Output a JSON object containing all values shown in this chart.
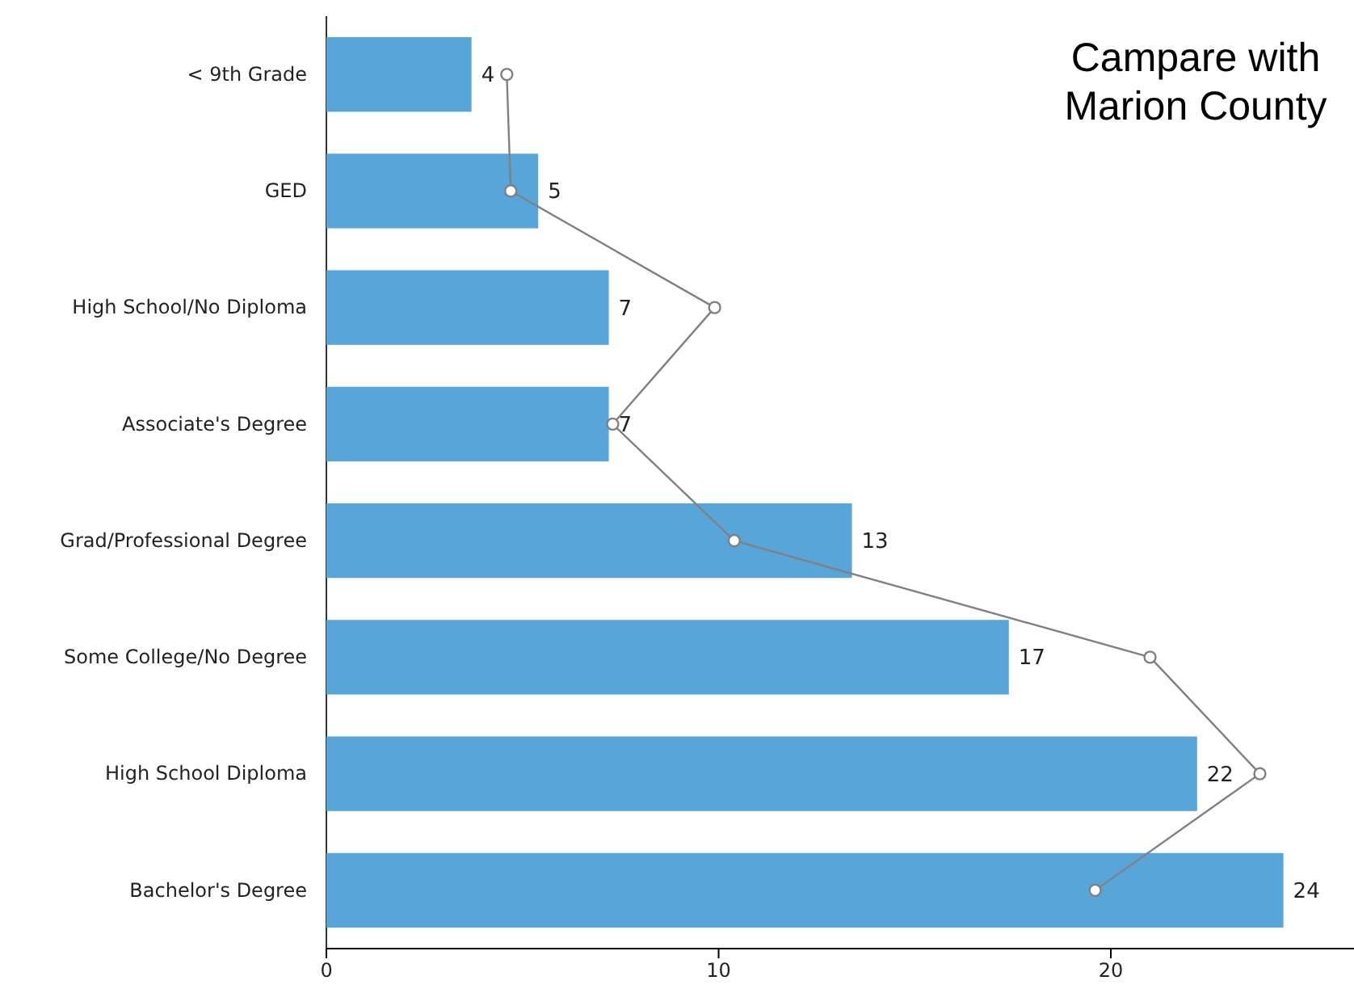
{
  "chart_data": {
    "type": "bar",
    "orientation": "horizontal",
    "title": "Campare with Marion County",
    "categories": [
      "< 9th Grade",
      "GED",
      "High School/No Diploma",
      "Associate's Degree",
      "Grad/Professional Degree",
      "Some College/No Degree",
      "High School Diploma",
      "Bachelor's Degree"
    ],
    "series": [
      {
        "color": "#58a5d9",
        "values": [
          3.7,
          5.4,
          7.2,
          7.2,
          13.4,
          17.4,
          22.2,
          24.4
        ],
        "value_labels": [
          "4",
          "5",
          "7",
          "7",
          "13",
          "17",
          "22",
          "24"
        ]
      },
      {
        "type": "line",
        "color": "#808080",
        "marker": "circle",
        "values": [
          4.6,
          4.7,
          9.9,
          7.3,
          10.4,
          21.0,
          23.8,
          19.6
        ]
      }
    ],
    "xlim": [
      0,
      26.2
    ],
    "xticks": [
      0,
      10,
      20
    ],
    "grid": false
  }
}
